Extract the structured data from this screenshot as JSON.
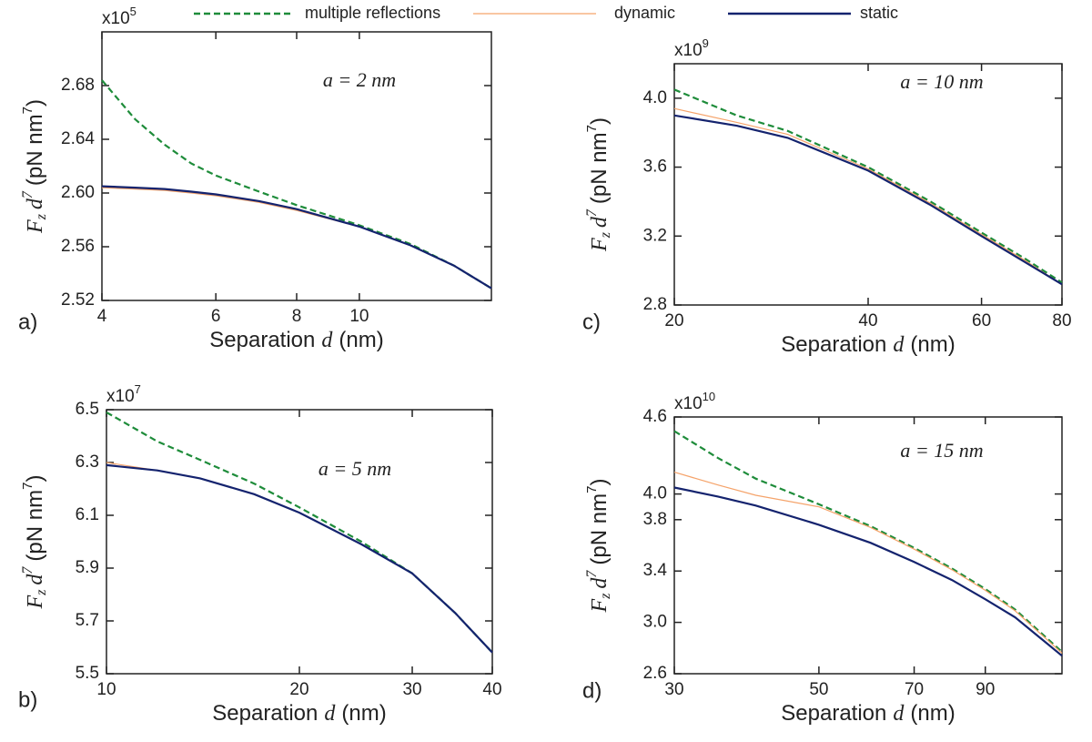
{
  "chart_data": [
    {
      "type": "line",
      "panel_label": "a)",
      "annotation": "a = 2 nm",
      "xlabel": [
        "Separation",
        "d",
        "(nm)"
      ],
      "ylabel": [
        "F",
        "z",
        "d",
        "7",
        "(pN nm",
        "7",
        ")"
      ],
      "y_multiplier": "x10",
      "y_exponent": "5",
      "xscale": "log",
      "xlim": [
        4,
        16
      ],
      "xticks": [
        4,
        6,
        8,
        10
      ],
      "ylim": [
        2.52,
        2.72
      ],
      "yticks": [
        2.52,
        2.56,
        {
          "value": 2.6,
          "label": "2.60"
        },
        2.64,
        2.68
      ],
      "x": [
        4,
        4.5,
        5,
        5.5,
        6,
        7,
        8,
        10,
        12,
        14,
        16
      ],
      "series": [
        {
          "name": "multiple reflections",
          "color": "#1e8c3a",
          "dashed": true,
          "values": [
            2.684,
            2.655,
            2.636,
            2.622,
            2.613,
            2.601,
            2.591,
            2.576,
            2.562,
            2.546,
            2.529
          ]
        },
        {
          "name": "dynamic",
          "color": "#f5a36a",
          "dashed": false,
          "values": [
            2.604,
            2.603,
            2.602,
            2.6,
            2.598,
            2.593,
            2.587,
            2.575,
            2.561,
            2.546,
            2.529
          ]
        },
        {
          "name": "static",
          "color": "#14236e",
          "dashed": false,
          "values": [
            2.605,
            2.604,
            2.603,
            2.601,
            2.599,
            2.594,
            2.588,
            2.575,
            2.561,
            2.546,
            2.529
          ]
        }
      ]
    },
    {
      "type": "line",
      "panel_label": "b)",
      "annotation": "a = 5 nm",
      "xlabel": [
        "Separation",
        "d",
        "(nm)"
      ],
      "ylabel": [
        "F",
        "z",
        "d",
        "7",
        "(pN nm",
        "7",
        ")"
      ],
      "y_multiplier": "x10",
      "y_exponent": "7",
      "xscale": "log",
      "xlim": [
        10,
        40
      ],
      "xticks": [
        10,
        20,
        30,
        40
      ],
      "ylim": [
        5.5,
        6.5
      ],
      "yticks": [
        5.5,
        5.7,
        5.9,
        6.1,
        6.3,
        6.5
      ],
      "x": [
        10,
        12,
        14,
        17,
        20,
        25,
        30,
        35,
        40
      ],
      "series": [
        {
          "color": "#1e8c3a",
          "dashed": true,
          "values": [
            6.49,
            6.38,
            6.31,
            6.22,
            6.13,
            6.0,
            5.88,
            5.73,
            5.58
          ]
        },
        {
          "color": "#f5a36a",
          "dashed": false,
          "values": [
            6.3,
            6.27,
            6.24,
            6.18,
            6.11,
            5.99,
            5.88,
            5.73,
            5.58
          ]
        },
        {
          "color": "#14236e",
          "dashed": false,
          "values": [
            6.29,
            6.27,
            6.24,
            6.18,
            6.11,
            5.99,
            5.88,
            5.73,
            5.58
          ]
        }
      ]
    },
    {
      "type": "line",
      "panel_label": "c)",
      "annotation": "a = 10 nm",
      "xlabel": [
        "Separation",
        "d",
        "(nm)"
      ],
      "ylabel": [
        "F",
        "z",
        "d",
        "7",
        "(pN nm",
        "7",
        ")"
      ],
      "y_multiplier": "x10",
      "y_exponent": "9",
      "xscale": "log",
      "xlim": [
        20,
        80
      ],
      "xticks": [
        20,
        40,
        60,
        80
      ],
      "ylim": [
        2.8,
        4.2
      ],
      "yticks": [
        2.8,
        3.2,
        3.6,
        {
          "value": 4,
          "label": "4.0"
        }
      ],
      "x": [
        20,
        25,
        30,
        40,
        50,
        60,
        70,
        80
      ],
      "series": [
        {
          "color": "#1e8c3a",
          "dashed": true,
          "values": [
            4.05,
            3.9,
            3.81,
            3.6,
            3.4,
            3.22,
            3.07,
            2.93
          ]
        },
        {
          "color": "#f5a36a",
          "dashed": false,
          "values": [
            3.94,
            3.86,
            3.79,
            3.59,
            3.39,
            3.21,
            3.06,
            2.92
          ]
        },
        {
          "color": "#14236e",
          "dashed": false,
          "values": [
            3.9,
            3.84,
            3.77,
            3.58,
            3.38,
            3.2,
            3.05,
            2.92
          ]
        }
      ]
    },
    {
      "type": "line",
      "panel_label": "d)",
      "annotation": "a = 15 nm",
      "xlabel": [
        "Separation",
        "d",
        "(nm)"
      ],
      "ylabel": [
        "F",
        "z",
        "d",
        "7",
        "(pN nm",
        "7",
        ")"
      ],
      "y_multiplier": "x10",
      "y_exponent": "10",
      "xscale": "log",
      "xlim": [
        30,
        118
      ],
      "xticks": [
        30,
        50,
        70,
        90
      ],
      "ylim": [
        2.6,
        4.6
      ],
      "yticks": [
        2.6,
        {
          "value": 3,
          "label": "3.0"
        },
        3.4,
        3.8,
        {
          "value": 4,
          "label": "4.0"
        },
        4.6
      ],
      "x": [
        30,
        35,
        40,
        50,
        60,
        70,
        80,
        90,
        100,
        118
      ],
      "series": [
        {
          "color": "#1e8c3a",
          "dashed": true,
          "values": [
            4.49,
            4.28,
            4.12,
            3.92,
            3.75,
            3.58,
            3.42,
            3.26,
            3.1,
            2.77
          ]
        },
        {
          "color": "#f5a36a",
          "dashed": false,
          "values": [
            4.17,
            4.07,
            3.99,
            3.9,
            3.74,
            3.57,
            3.41,
            3.25,
            3.09,
            2.76
          ]
        },
        {
          "color": "#14236e",
          "dashed": false,
          "values": [
            4.05,
            3.98,
            3.91,
            3.76,
            3.62,
            3.47,
            3.33,
            3.18,
            3.04,
            2.74
          ]
        }
      ]
    }
  ]
}
